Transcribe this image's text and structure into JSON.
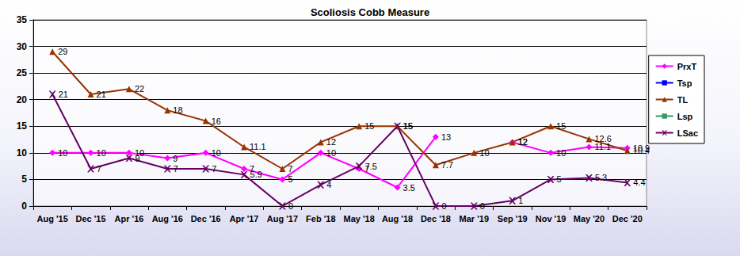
{
  "chart_data": {
    "type": "line",
    "title": "Scoliosis Cobb Measure",
    "categories": [
      "Aug '15",
      "Dec '15",
      "Apr '16",
      "Aug '16",
      "Dec '16",
      "Apr '17",
      "Aug '17",
      "Feb '18",
      "May '18",
      "Aug '18",
      "Dec '18",
      "Mar '19",
      "Sep '19",
      "Nov '19",
      "May '20",
      "Dec '20"
    ],
    "series": [
      {
        "name": "PrxT",
        "color": "#ff00ff",
        "marker": "diamond",
        "values": [
          10,
          10,
          10,
          9,
          10,
          7,
          5,
          10,
          7,
          3.5,
          13,
          null,
          12,
          10,
          11.1,
          10.9
        ]
      },
      {
        "name": "Tsp",
        "color": "#0000ff",
        "marker": "square",
        "values": [
          null,
          null,
          null,
          null,
          null,
          null,
          null,
          null,
          null,
          null,
          null,
          null,
          null,
          null,
          null,
          null
        ]
      },
      {
        "name": "TL",
        "color": "#993300",
        "marker": "triangle",
        "values": [
          29,
          21,
          22,
          18,
          16,
          11.1,
          7,
          12,
          15,
          15,
          7.7,
          10,
          12,
          15,
          12.6,
          10.4
        ]
      },
      {
        "name": "Lsp",
        "color": "#339966",
        "marker": "square",
        "values": [
          null,
          null,
          null,
          null,
          null,
          null,
          null,
          null,
          null,
          null,
          null,
          null,
          null,
          null,
          null,
          null
        ]
      },
      {
        "name": "LSac",
        "color": "#660066",
        "marker": "x",
        "values": [
          21,
          7,
          9,
          7,
          7,
          5.9,
          0,
          4,
          7.5,
          15,
          0,
          0,
          1,
          5,
          5.3,
          4.4
        ]
      }
    ],
    "ylim": [
      0,
      35
    ],
    "yticks": [
      0,
      5,
      10,
      15,
      20,
      25,
      30,
      35
    ],
    "grid": true,
    "legend": "right",
    "data_labels": true
  }
}
